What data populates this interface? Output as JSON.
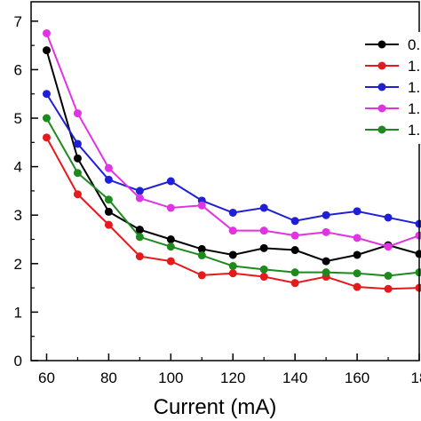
{
  "chart_data": {
    "type": "line",
    "title": "",
    "xlabel": "Current (mA)",
    "ylabel": "",
    "xlim": [
      55,
      180
    ],
    "ylim": [
      0,
      7.4
    ],
    "x_ticks": [
      60,
      80,
      100,
      120,
      140,
      160,
      "18"
    ],
    "y_ticks": [
      0,
      1,
      2,
      3,
      4,
      5,
      6,
      7
    ],
    "x": [
      60,
      70,
      80,
      90,
      100,
      110,
      120,
      130,
      140,
      150,
      160,
      170,
      180
    ],
    "legend": {
      "position": "top-right"
    },
    "series": [
      {
        "name": "0.",
        "color": "#000000",
        "values": [
          6.4,
          4.17,
          3.07,
          2.7,
          2.5,
          2.3,
          2.18,
          2.32,
          2.28,
          2.05,
          2.18,
          2.38,
          2.2
        ]
      },
      {
        "name": "1.",
        "color": "#e41a1c",
        "values": [
          4.6,
          3.43,
          2.8,
          2.15,
          2.05,
          1.76,
          1.8,
          1.73,
          1.6,
          1.73,
          1.52,
          1.48,
          1.5
        ]
      },
      {
        "name": "1.",
        "color": "#1f1fd6",
        "values": [
          5.5,
          4.47,
          3.73,
          3.5,
          3.7,
          3.3,
          3.05,
          3.15,
          2.88,
          3.0,
          3.08,
          2.95,
          2.82
        ]
      },
      {
        "name": "1.",
        "color": "#e233e2",
        "values": [
          6.75,
          5.1,
          3.97,
          3.35,
          3.15,
          3.2,
          2.68,
          2.68,
          2.58,
          2.65,
          2.53,
          2.35,
          2.58
        ]
      },
      {
        "name": "1.",
        "color": "#1e8a1e",
        "values": [
          5.0,
          3.87,
          3.32,
          2.55,
          2.35,
          2.17,
          1.95,
          1.88,
          1.82,
          1.82,
          1.8,
          1.75,
          1.82
        ]
      }
    ]
  }
}
